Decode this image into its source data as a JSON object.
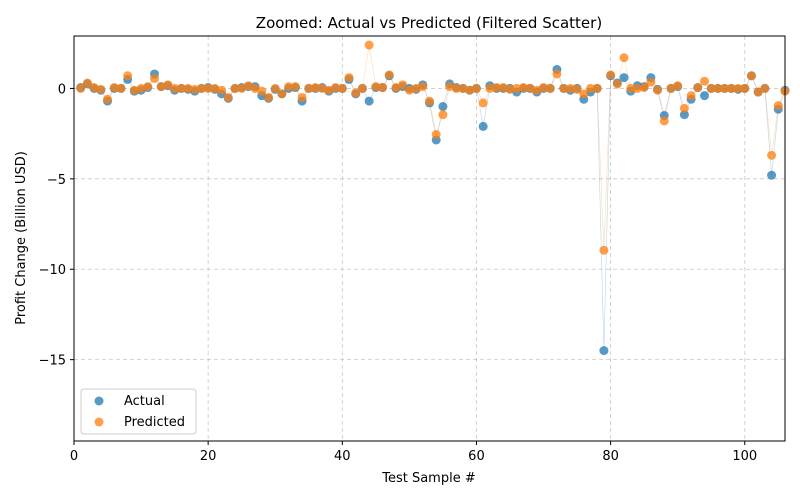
{
  "chart_data": {
    "type": "scatter",
    "title": "Zoomed: Actual vs Predicted (Filtered Scatter)",
    "xlabel": "Test Sample #",
    "ylabel": "Profit Change (Billion USD)",
    "xlim": [
      0,
      106
    ],
    "ylim": [
      -19.5,
      2.9
    ],
    "xticks": [
      0,
      20,
      40,
      60,
      80,
      100
    ],
    "yticks": [
      0,
      -5,
      -10,
      -15
    ],
    "grid": true,
    "legend_position": "lower-left",
    "x": [
      1,
      2,
      3,
      4,
      5,
      6,
      7,
      8,
      9,
      10,
      11,
      12,
      13,
      14,
      15,
      16,
      17,
      18,
      19,
      20,
      21,
      22,
      23,
      24,
      25,
      26,
      27,
      28,
      29,
      30,
      31,
      32,
      33,
      34,
      35,
      36,
      37,
      38,
      39,
      40,
      41,
      42,
      43,
      44,
      45,
      46,
      47,
      48,
      49,
      50,
      51,
      52,
      53,
      54,
      55,
      56,
      57,
      58,
      59,
      60,
      61,
      62,
      63,
      64,
      65,
      66,
      67,
      68,
      69,
      70,
      71,
      72,
      73,
      74,
      75,
      76,
      77,
      78,
      79,
      80,
      81,
      82,
      83,
      84,
      85,
      86,
      87,
      88,
      89,
      90,
      91,
      92,
      93,
      94,
      95,
      96,
      97,
      98,
      99,
      100,
      101,
      102,
      103,
      104,
      105,
      106
    ],
    "series": [
      {
        "name": "Actual",
        "color": "#1f77b4",
        "values": [
          0.05,
          0.25,
          0.0,
          -0.1,
          -0.7,
          0.0,
          0.0,
          0.5,
          -0.15,
          -0.1,
          0.05,
          0.8,
          0.1,
          0.15,
          -0.1,
          0.0,
          -0.05,
          -0.15,
          0.0,
          0.05,
          -0.05,
          -0.3,
          -0.55,
          0.0,
          0.05,
          0.1,
          0.1,
          -0.4,
          -0.55,
          -0.05,
          -0.3,
          0.0,
          0.05,
          -0.7,
          0.0,
          0.0,
          0.05,
          -0.15,
          0.0,
          0.0,
          0.5,
          -0.3,
          0.0,
          -0.7,
          0.05,
          0.05,
          0.7,
          0.0,
          0.1,
          0.0,
          -0.05,
          0.2,
          -0.8,
          -2.85,
          -1.0,
          0.25,
          0.05,
          0.0,
          -0.1,
          0.0,
          -2.1,
          0.15,
          0.0,
          0.0,
          0.0,
          -0.2,
          0.0,
          0.0,
          -0.2,
          0.0,
          0.0,
          1.05,
          0.0,
          -0.1,
          0.0,
          -0.6,
          -0.2,
          0.0,
          -14.5,
          0.7,
          0.3,
          0.6,
          -0.15,
          0.15,
          0.1,
          0.6,
          -0.05,
          -1.5,
          0.0,
          0.1,
          -1.45,
          -0.6,
          0.05,
          -0.4,
          0.0,
          0.0,
          0.0,
          0.0,
          -0.05,
          0.0,
          0.7,
          -0.2,
          0.0,
          -4.8,
          -1.15,
          -0.1
        ]
      },
      {
        "name": "Predicted",
        "color": "#ff7f0e",
        "values": [
          0.0,
          0.3,
          0.05,
          -0.05,
          -0.6,
          0.05,
          0.0,
          0.7,
          -0.1,
          0.0,
          0.1,
          0.55,
          0.1,
          0.2,
          0.0,
          0.0,
          0.0,
          -0.05,
          0.0,
          0.0,
          0.0,
          -0.1,
          -0.5,
          0.0,
          0.0,
          0.15,
          0.0,
          -0.15,
          -0.5,
          0.0,
          -0.3,
          0.1,
          0.1,
          -0.5,
          0.0,
          0.05,
          0.0,
          -0.1,
          0.05,
          0.0,
          0.6,
          -0.25,
          0.0,
          2.4,
          0.1,
          0.05,
          0.75,
          0.05,
          0.2,
          -0.1,
          0.0,
          0.1,
          -0.7,
          -2.55,
          -1.45,
          0.1,
          0.0,
          0.0,
          -0.1,
          0.0,
          -0.8,
          0.0,
          0.05,
          0.05,
          -0.05,
          0.0,
          0.05,
          0.0,
          -0.1,
          0.05,
          0.0,
          0.8,
          0.0,
          0.0,
          -0.05,
          -0.3,
          0.0,
          0.0,
          -8.95,
          0.75,
          0.25,
          1.7,
          0.0,
          0.0,
          0.05,
          0.35,
          -0.1,
          -1.8,
          0.0,
          0.15,
          -1.1,
          -0.4,
          0.05,
          0.4,
          0.0,
          0.0,
          0.0,
          0.0,
          0.0,
          0.0,
          0.7,
          -0.2,
          0.0,
          -3.7,
          -0.95,
          -0.15
        ]
      }
    ]
  }
}
